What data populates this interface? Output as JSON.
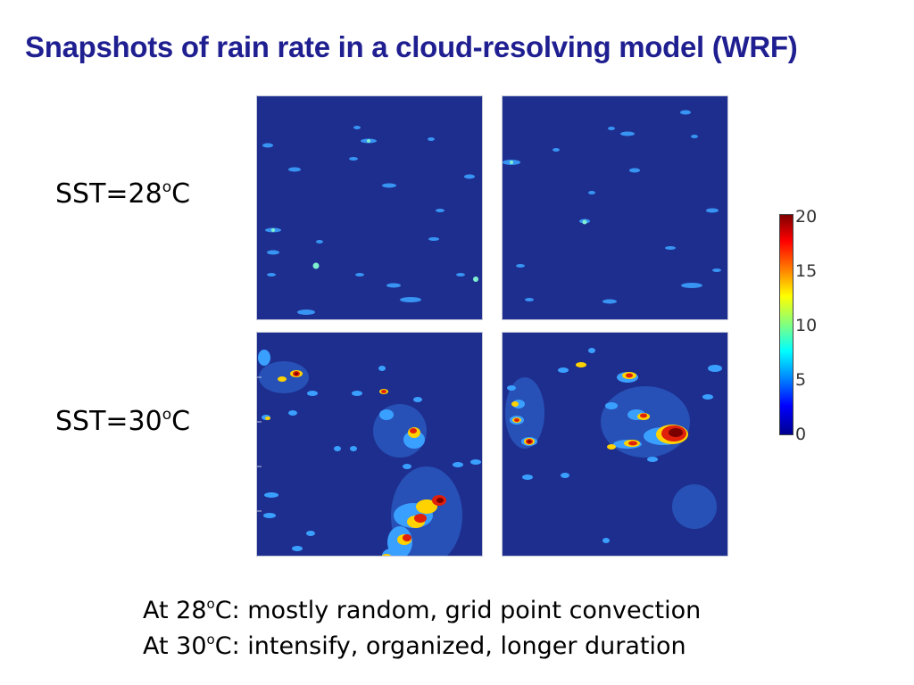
{
  "slide": {
    "title": "Snapshots of rain rate in a cloud-resolving model (WRF)",
    "rows": [
      {
        "prefix": "SST=28",
        "sup": "o",
        "suffix": "C"
      },
      {
        "prefix": "SST=30",
        "sup": "o",
        "suffix": "C"
      }
    ],
    "colorbar": {
      "ticks": [
        "20",
        "15",
        "10",
        "5",
        "0"
      ],
      "colors": [
        "#00008f",
        "#0000ff",
        "#0080ff",
        "#00ffff",
        "#80ff80",
        "#ffff00",
        "#ff8000",
        "#ff0000",
        "#800000"
      ]
    },
    "summary": [
      {
        "prefix": "At 28",
        "sup": "o",
        "suffix": "C: mostly random, grid point convection"
      },
      {
        "prefix": "At 30",
        "sup": "o",
        "suffix": "C: intensify, organized, longer duration"
      }
    ]
  }
}
